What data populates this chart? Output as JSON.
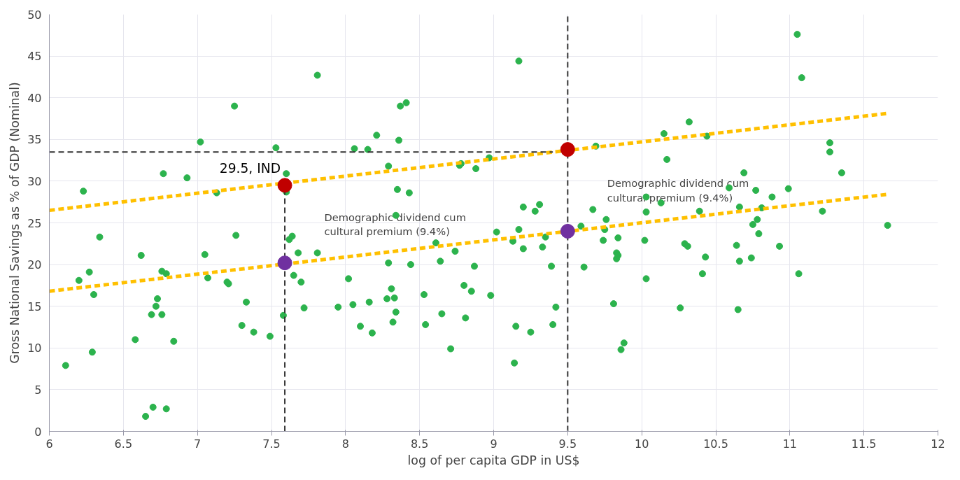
{
  "chart_data": {
    "type": "scatter",
    "xlabel": "log of per capita GDP in US$",
    "ylabel": "Gross National Savings as % of GDP (Nominal)",
    "xlim": [
      6,
      12
    ],
    "xticks": [
      6,
      6.5,
      7,
      7.5,
      8,
      8.5,
      9,
      9.5,
      10,
      10.5,
      11,
      11.5,
      12
    ],
    "ylim": [
      0,
      50
    ],
    "yticks": [
      0,
      5,
      10,
      15,
      20,
      25,
      30,
      35,
      40,
      45,
      50
    ],
    "grid": true,
    "series": [
      {
        "marker": "circle",
        "color": "#2cb34d",
        "x": [
          6.11,
          6.2,
          6.23,
          6.27,
          6.29,
          6.3,
          6.34,
          6.58,
          6.62,
          6.65,
          6.69,
          6.7,
          6.72,
          6.73,
          6.76,
          6.76,
          6.77,
          6.79,
          6.79,
          6.84,
          6.93,
          7.02,
          7.05,
          7.07,
          7.13,
          7.2,
          7.21,
          7.25,
          7.26,
          7.3,
          7.33,
          7.38,
          7.49,
          7.53,
          7.58,
          7.6,
          7.6,
          7.62,
          7.64,
          7.68,
          7.65,
          7.7,
          7.72,
          7.81,
          7.81,
          7.95,
          8.02,
          8.05,
          8.06,
          8.1,
          8.15,
          8.16,
          8.18,
          8.21,
          8.28,
          8.29,
          8.29,
          8.31,
          8.33,
          8.32,
          8.34,
          8.35,
          8.37,
          8.41,
          8.36,
          8.34,
          8.43,
          8.44,
          8.53,
          8.54,
          8.61,
          8.64,
          8.65,
          8.71,
          8.74,
          8.77,
          8.78,
          8.8,
          8.81,
          8.85,
          8.87,
          8.88,
          8.97,
          8.98,
          9.02,
          9.13,
          9.15,
          9.14,
          9.17,
          9.17,
          9.2,
          9.2,
          9.25,
          9.28,
          9.31,
          9.33,
          9.35,
          9.39,
          9.4,
          9.42,
          9.59,
          9.61,
          9.67,
          9.69,
          9.74,
          9.75,
          9.76,
          9.81,
          9.83,
          9.83,
          9.84,
          9.84,
          9.88,
          9.86,
          10.02,
          10.03,
          10.03,
          10.03,
          10.13,
          10.15,
          10.17,
          10.26,
          10.29,
          10.31,
          10.32,
          10.39,
          10.41,
          10.43,
          10.44,
          10.59,
          10.64,
          10.65,
          10.66,
          10.66,
          10.69,
          10.74,
          10.75,
          10.77,
          10.78,
          10.79,
          10.81,
          10.88,
          10.93,
          10.99,
          11.05,
          11.06,
          11.08,
          11.22,
          11.27,
          11.27,
          11.35,
          11.66
        ],
        "values": [
          7.9,
          18.1,
          28.8,
          19.1,
          9.5,
          16.4,
          23.3,
          11.0,
          21.1,
          1.8,
          14.0,
          2.9,
          15.0,
          15.9,
          19.2,
          14.0,
          30.9,
          18.9,
          2.7,
          10.8,
          30.4,
          34.7,
          21.2,
          18.4,
          28.6,
          17.9,
          17.7,
          39.0,
          23.5,
          12.7,
          15.5,
          11.9,
          11.4,
          34.0,
          13.9,
          30.9,
          28.7,
          23.0,
          23.4,
          21.4,
          18.7,
          17.9,
          14.8,
          42.7,
          21.4,
          14.9,
          18.3,
          15.2,
          33.9,
          12.6,
          33.8,
          15.5,
          11.8,
          35.5,
          15.9,
          20.2,
          31.8,
          17.1,
          16.0,
          13.1,
          14.3,
          29.0,
          39.0,
          39.4,
          34.9,
          25.9,
          28.6,
          20.0,
          16.4,
          12.8,
          22.6,
          20.4,
          14.1,
          9.9,
          21.6,
          31.9,
          32.1,
          17.5,
          13.6,
          16.8,
          19.8,
          31.5,
          32.8,
          16.3,
          23.9,
          22.8,
          12.6,
          8.2,
          44.4,
          24.2,
          26.9,
          21.9,
          11.9,
          26.4,
          27.2,
          22.1,
          23.3,
          19.8,
          12.8,
          14.9,
          24.6,
          19.7,
          26.6,
          34.2,
          22.9,
          24.2,
          25.4,
          15.3,
          21.4,
          20.7,
          21.1,
          23.2,
          10.6,
          9.8,
          22.9,
          18.3,
          26.3,
          28.1,
          27.4,
          35.7,
          32.6,
          14.8,
          22.5,
          22.2,
          37.1,
          26.4,
          18.9,
          20.9,
          35.4,
          29.2,
          22.3,
          14.6,
          20.4,
          26.9,
          31.0,
          20.8,
          24.8,
          28.9,
          25.4,
          23.7,
          26.8,
          28.1,
          22.2,
          29.1,
          47.6,
          18.9,
          42.4,
          26.4,
          33.5,
          34.6,
          31.0,
          24.7
        ]
      },
      {
        "type": "line",
        "marker": "none",
        "color": "#ffc000",
        "line_style": "dashed",
        "x": [
          6,
          11.65
        ],
        "values": [
          26.5,
          38.1
        ]
      },
      {
        "type": "line",
        "marker": "none",
        "color": "#ffc000",
        "line_style": "dashed",
        "x": [
          6,
          11.65
        ],
        "values": [
          16.8,
          28.4
        ]
      },
      {
        "type": "line",
        "marker": "none",
        "color": "#333333",
        "line_style": "dashed",
        "x": [
          7.59,
          7.59
        ],
        "values": [
          0,
          29.5
        ]
      },
      {
        "type": "line",
        "marker": "none",
        "color": "#333333",
        "line_style": "dashed",
        "x": [
          9.5,
          9.5
        ],
        "values": [
          0,
          50
        ]
      },
      {
        "type": "line",
        "marker": "none",
        "color": "#333333",
        "line_style": "dashed",
        "x": [
          6,
          9.4
        ],
        "values": [
          33.5,
          33.5
        ]
      },
      {
        "type": "scatter",
        "marker": "circle",
        "color": "#c00000",
        "x": [
          7.59,
          9.5
        ],
        "values": [
          29.5,
          33.8
        ]
      },
      {
        "type": "scatter",
        "marker": "circle",
        "color": "#7030a0",
        "x": [
          7.59,
          9.5
        ],
        "values": [
          20.2,
          24.0
        ]
      }
    ],
    "annotations": [
      {
        "text": "29.5, IND",
        "x": 7.59,
        "y": 29.5
      },
      "Demographic dividend cum\ncultural premium (9.4%)",
      "Demographic dividend cum\ncultural premium (9.4%)"
    ]
  }
}
